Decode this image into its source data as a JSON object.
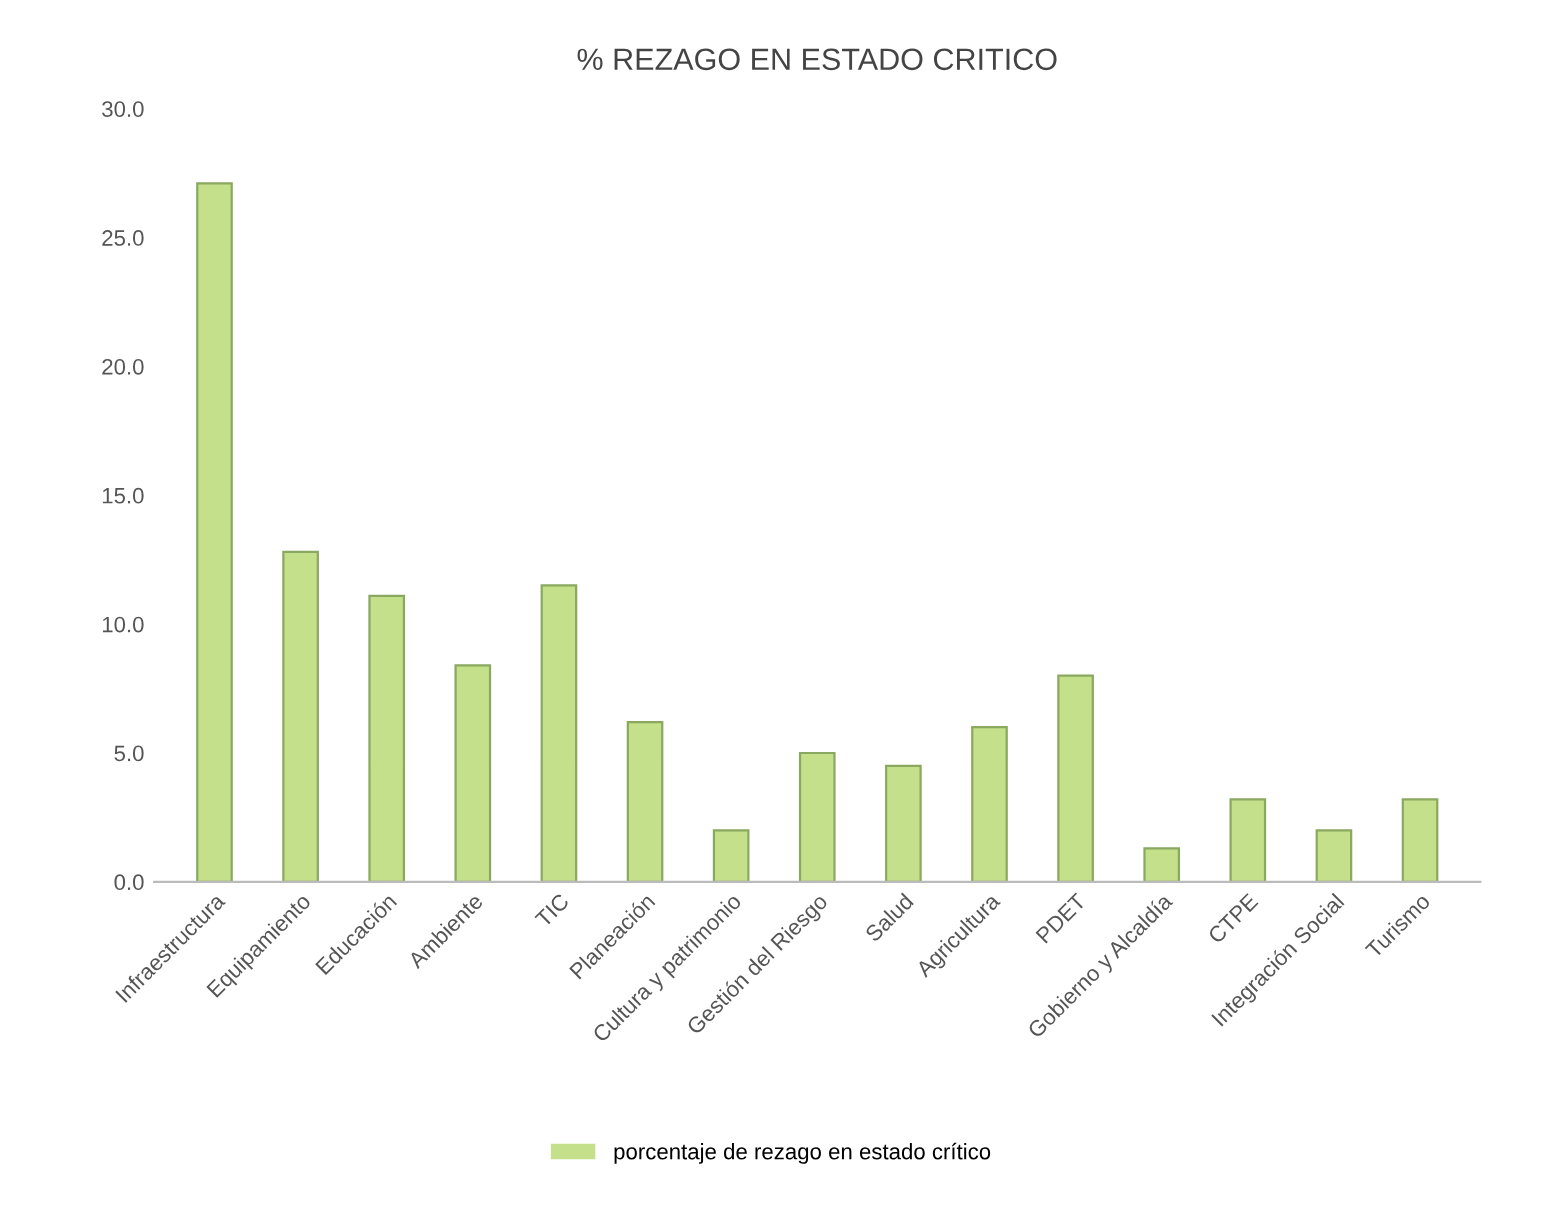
{
  "chart_data": {
    "type": "bar",
    "title": "% REZAGO EN ESTADO CRITICO",
    "categories": [
      "Infraestructura",
      "Equipamiento",
      "Educación",
      "Ambiente",
      "TIC",
      "Planeación",
      "Cultura y patrimonio",
      "Gestión del Riesgo",
      "Salud",
      "Agricultura",
      "PDET",
      "Gobierno y Alcaldía",
      "CTPE",
      "Integración Social",
      "Turismo"
    ],
    "series": [
      {
        "name": "porcentaje de rezago en estado crítico",
        "color": "#c4e08a",
        "values": [
          27.1,
          12.8,
          11.1,
          8.4,
          11.5,
          6.2,
          2.0,
          5.0,
          4.5,
          6.0,
          8.0,
          1.3,
          3.2,
          2.0,
          3.2
        ]
      }
    ],
    "ylim": [
      0,
      30
    ],
    "yticks": [
      {
        "value": 0,
        "label": "0.0"
      },
      {
        "value": 5,
        "label": "5.0"
      },
      {
        "value": 10,
        "label": "10.0"
      },
      {
        "value": 15,
        "label": "15.0"
      },
      {
        "value": 20,
        "label": "20.0"
      },
      {
        "value": 25,
        "label": "25.0"
      },
      {
        "value": 30,
        "label": "30.0"
      }
    ],
    "legend": "bottom"
  }
}
